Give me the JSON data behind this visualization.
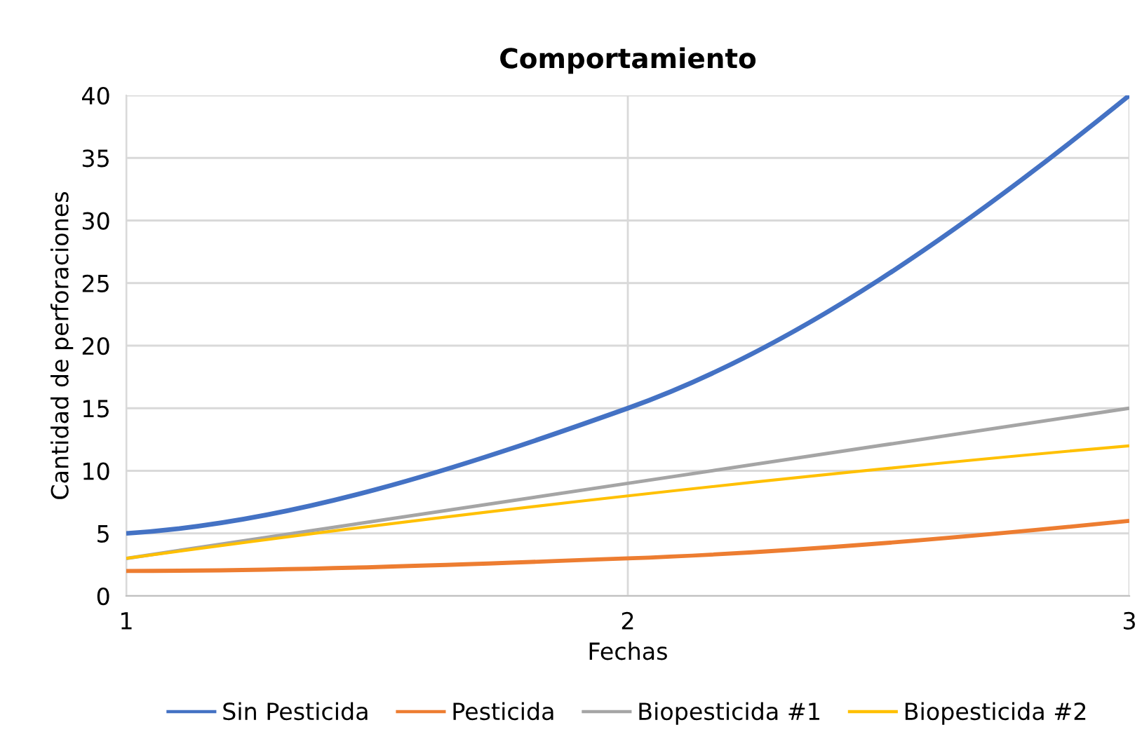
{
  "chart_data": {
    "type": "line",
    "title": "Comportamiento",
    "xlabel": "Fechas",
    "ylabel": "Cantidad de perforaciones",
    "x": [
      1,
      2,
      3
    ],
    "series": [
      {
        "name": "Sin Pesticida",
        "color": "#4472c4",
        "values": [
          5,
          15,
          40
        ]
      },
      {
        "name": "Pesticida",
        "color": "#ed7d31",
        "values": [
          2,
          3,
          6
        ]
      },
      {
        "name": "Biopesticida #1",
        "color": "#a5a5a5",
        "values": [
          3,
          9,
          15
        ]
      },
      {
        "name": "Biopesticida #2",
        "color": "#ffc000",
        "values": [
          3,
          8,
          12
        ]
      }
    ],
    "xlim": [
      1,
      3
    ],
    "xticks": [
      1,
      2,
      3
    ],
    "ylim": [
      0,
      40
    ],
    "yticks": [
      0,
      5,
      10,
      15,
      20,
      25,
      30,
      35,
      40
    ],
    "grid": true,
    "legend": "bottom",
    "marker": "none",
    "line_style": "solid"
  }
}
